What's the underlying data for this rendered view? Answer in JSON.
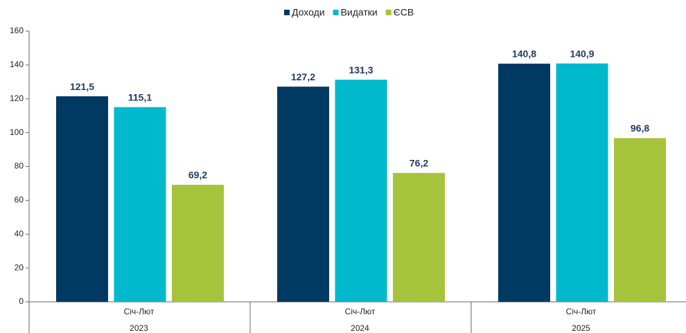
{
  "chart_data": {
    "type": "bar",
    "categories": [
      "Січ-Лют",
      "Січ-Лют",
      "Січ-Лют"
    ],
    "groups": [
      "2023",
      "2024",
      "2025"
    ],
    "series": [
      {
        "name": "Доходи",
        "color": "#003a63",
        "values": [
          121.5,
          127.2,
          140.8
        ],
        "value_labels": [
          "121,5",
          "127,2",
          "140,8"
        ]
      },
      {
        "name": "Видатки",
        "color": "#00b9cc",
        "values": [
          115.1,
          131.3,
          140.9
        ],
        "value_labels": [
          "115,1",
          "131,3",
          "140,9"
        ]
      },
      {
        "name": "ЄСВ",
        "color": "#a6c43b",
        "values": [
          69.2,
          76.2,
          96.8
        ],
        "value_labels": [
          "69,2",
          "76,2",
          "96,8"
        ]
      }
    ],
    "ylim": [
      0,
      160
    ],
    "yticks": [
      0,
      20,
      40,
      60,
      80,
      100,
      120,
      140,
      160
    ],
    "legend": "top"
  }
}
